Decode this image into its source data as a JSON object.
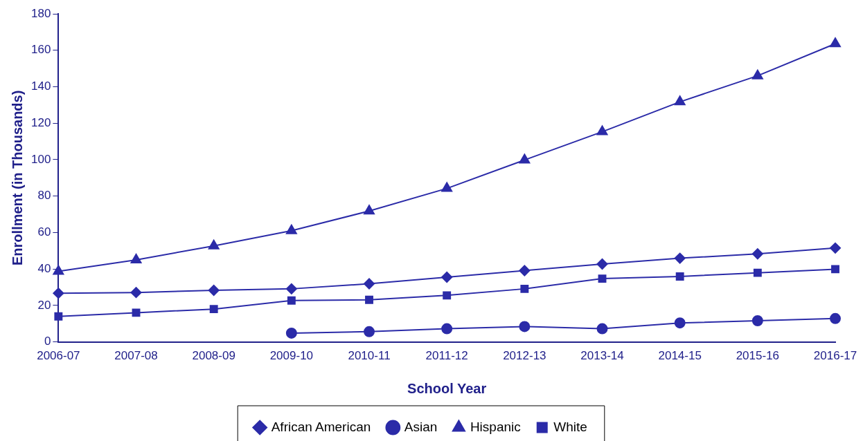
{
  "chart_data": {
    "type": "line",
    "xlabel": "School Year",
    "ylabel": "Enrollment (in Thousands)",
    "categories": [
      "2006-07",
      "2007-08",
      "2008-09",
      "2009-10",
      "2010-11",
      "2011-12",
      "2012-13",
      "2013-14",
      "2014-15",
      "2015-16",
      "2016-17"
    ],
    "series": [
      {
        "name": "African American",
        "color": "#2b2ba8",
        "marker": "diamond",
        "values": [
          26.7,
          27.1,
          28.3,
          29.1,
          31.9,
          35.5,
          39.1,
          42.7,
          45.9,
          48.3,
          51.5
        ]
      },
      {
        "name": "Asian",
        "color": "#2b2ba8",
        "marker": "circle",
        "values": [
          null,
          null,
          null,
          4.8,
          5.6,
          7.2,
          8.4,
          7.2,
          10.4,
          11.6,
          12.8
        ]
      },
      {
        "name": "Hispanic",
        "color": "#2b2ba8",
        "marker": "triangle",
        "values": [
          38.7,
          45,
          52.7,
          61,
          71.8,
          84.2,
          99.8,
          115.3,
          131.7,
          146,
          163.6
        ]
      },
      {
        "name": "White",
        "color": "#2b2ba8",
        "marker": "square",
        "values": [
          14,
          16,
          18,
          22.7,
          23.1,
          25.5,
          29.1,
          34.7,
          35.9,
          37.9,
          39.9
        ]
      }
    ],
    "ylim": [
      0,
      180
    ],
    "yticks": [
      0,
      20,
      40,
      60,
      80,
      100,
      120,
      140,
      160,
      180
    ],
    "grid": false,
    "legend": "bottom",
    "line_style": "solid"
  }
}
